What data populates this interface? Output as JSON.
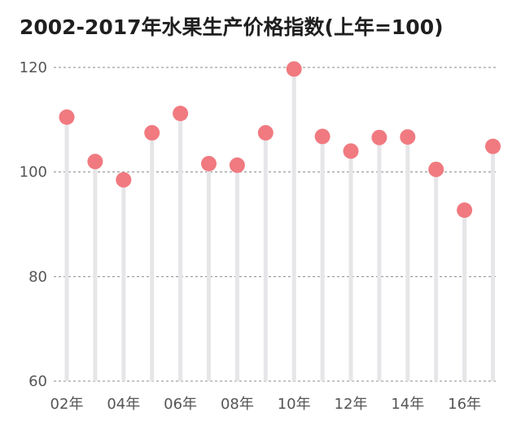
{
  "chart_data": {
    "type": "lollipop",
    "title": "2002-2017年水果生产价格指数(上年=100)",
    "x": [
      2002,
      2003,
      2004,
      2005,
      2006,
      2007,
      2008,
      2009,
      2010,
      2011,
      2012,
      2013,
      2014,
      2015,
      2016,
      2017
    ],
    "x_tick_labels": [
      "02年",
      "04年",
      "06年",
      "08年",
      "10年",
      "12年",
      "14年",
      "16年"
    ],
    "x_tick_years": [
      2002,
      2004,
      2006,
      2008,
      2010,
      2012,
      2014,
      2016
    ],
    "values": [
      110.5,
      102.0,
      98.5,
      107.5,
      111.2,
      101.6,
      101.3,
      107.5,
      119.7,
      106.8,
      104.0,
      106.6,
      106.7,
      100.5,
      92.7,
      104.9
    ],
    "ylim": [
      60,
      120
    ],
    "y_ticks": [
      60,
      80,
      100,
      120
    ],
    "grid": true,
    "colors": {
      "marker": "#f07a80",
      "stem": "#e6e6e9",
      "grid": "#8a8a8a",
      "text": "#555555",
      "title": "#1f1f1f"
    }
  }
}
